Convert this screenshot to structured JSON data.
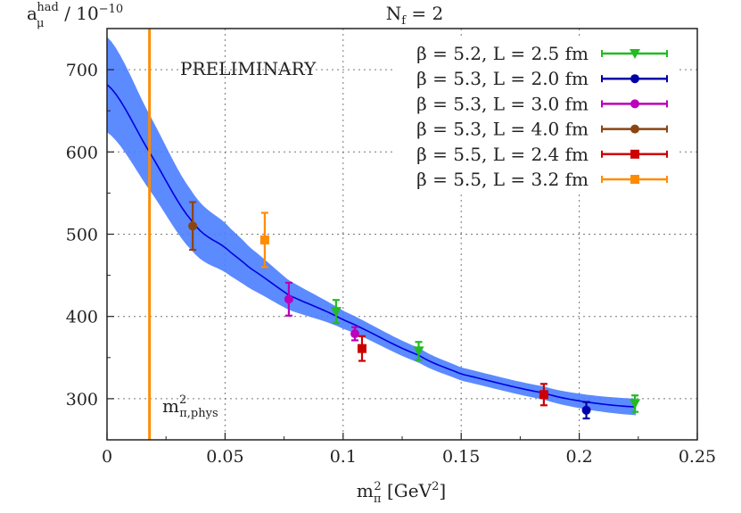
{
  "chart_data": {
    "type": "scatter",
    "title": "N_f = 2",
    "title_main": "N",
    "title_sub": "f",
    "title_rest": " = 2",
    "ylabel_main": "a",
    "ylabel_sub": "μ",
    "ylabel_sup": "had",
    "ylabel_rest": " / 10",
    "ylabel_exp": "−10",
    "xlabel_main": "m",
    "xlabel_sub": "π",
    "xlabel_sup": "2",
    "xlabel_rest": " [GeV",
    "xlabel_unit_exp": "2",
    "xlabel_close": "]",
    "xlim": [
      0,
      0.25
    ],
    "ylim": [
      250,
      750
    ],
    "xticks": [
      0,
      0.05,
      0.1,
      0.15,
      0.2,
      0.25
    ],
    "xtick_labels": [
      "0",
      "0.05",
      "0.1",
      "0.15",
      "0.2",
      "0.25"
    ],
    "yticks": [
      300,
      400,
      500,
      600,
      700
    ],
    "ytick_labels": [
      "300",
      "400",
      "500",
      "600",
      "700"
    ],
    "grid": true,
    "legend_placement": "top-right",
    "annotations": {
      "preliminary": "PRELIMINARY",
      "phys_main": "m",
      "phys_sup": "2",
      "phys_sub": "π,phys"
    },
    "physical_point": {
      "x": 0.018,
      "color": "#ff8c00"
    },
    "fit": {
      "color": "#0000dd",
      "band_color": "#4a7dff",
      "x": [
        0,
        0.0177,
        0.036,
        0.05,
        0.0604,
        0.077,
        0.1,
        0.132,
        0.15,
        0.185,
        0.203,
        0.224
      ],
      "y": [
        682,
        601,
        516,
        484,
        459,
        426,
        396,
        353,
        330,
        307,
        296,
        290
      ],
      "err": [
        58,
        46,
        36,
        30,
        25,
        18,
        11,
        9,
        8,
        8,
        9,
        10
      ]
    },
    "series": [
      {
        "name": "β = 5.2, L = 2.5 fm",
        "color": "#22bb22",
        "marker": "triangle-down",
        "points": [
          {
            "x": 0.097,
            "y": 406,
            "err": 14
          },
          {
            "x": 0.132,
            "y": 358,
            "err": 11
          },
          {
            "x": 0.2236,
            "y": 294,
            "err": 10
          }
        ]
      },
      {
        "name": "β = 5.3, L = 2.0 fm",
        "color": "#0000aa",
        "marker": "circle",
        "points": [
          {
            "x": 0.203,
            "y": 286,
            "err": 10
          }
        ]
      },
      {
        "name": "β = 5.3, L = 3.0 fm",
        "color": "#bb00bb",
        "marker": "circle",
        "points": [
          {
            "x": 0.077,
            "y": 421,
            "err": 20
          },
          {
            "x": 0.105,
            "y": 379,
            "err": 8
          }
        ]
      },
      {
        "name": "β = 5.3, L = 4.0 fm",
        "color": "#8b4513",
        "marker": "circle",
        "points": [
          {
            "x": 0.0363,
            "y": 510,
            "err": 29
          }
        ]
      },
      {
        "name": "β = 5.5, L = 2.4 fm",
        "color": "#cc0000",
        "marker": "square",
        "points": [
          {
            "x": 0.108,
            "y": 361,
            "err": 15
          },
          {
            "x": 0.185,
            "y": 305,
            "err": 13
          }
        ]
      },
      {
        "name": "β = 5.5, L = 3.2 fm",
        "color": "#ff8c00",
        "marker": "square",
        "points": [
          {
            "x": 0.0668,
            "y": 493,
            "err": 33
          }
        ]
      }
    ]
  }
}
